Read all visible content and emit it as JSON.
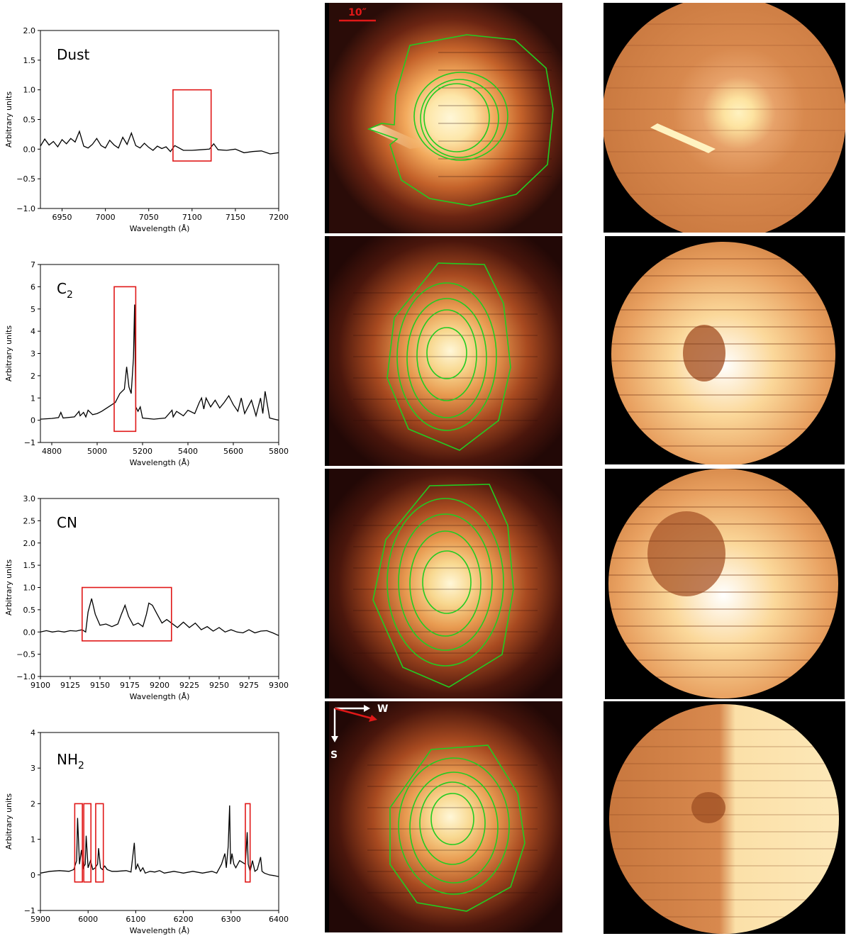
{
  "chart_data": [
    {
      "type": "line",
      "species": "Dust",
      "xlabel": "Wavelength (Å)",
      "ylabel": "Arbitrary units",
      "xlim": [
        6925,
        7200
      ],
      "ylim": [
        -1.0,
        2.0
      ],
      "xticks": [
        "6950",
        "7000",
        "7050",
        "7100",
        "7150",
        "7200"
      ],
      "yticks": [
        "−1.0",
        "−0.5",
        "0.0",
        "0.5",
        "1.0",
        "1.5",
        "2.0"
      ],
      "series": [
        {
          "name": "spectrum",
          "x": [
            6925,
            6930,
            6935,
            6940,
            6945,
            6950,
            6955,
            6960,
            6965,
            6970,
            6975,
            6980,
            6985,
            6990,
            6995,
            7000,
            7005,
            7010,
            7015,
            7020,
            7025,
            7030,
            7035,
            7040,
            7045,
            7050,
            7055,
            7060,
            7065,
            7070,
            7075,
            7080,
            7090,
            7100,
            7110,
            7120,
            7125,
            7130,
            7140,
            7150,
            7160,
            7170,
            7180,
            7190,
            7200
          ],
          "y": [
            0.05,
            0.17,
            0.07,
            0.13,
            0.04,
            0.16,
            0.09,
            0.18,
            0.12,
            0.3,
            0.05,
            0.02,
            0.08,
            0.18,
            0.06,
            0.02,
            0.15,
            0.07,
            0.02,
            0.2,
            0.08,
            0.27,
            0.06,
            0.02,
            0.1,
            0.03,
            -0.02,
            0.05,
            0.01,
            0.04,
            -0.04,
            0.06,
            -0.02,
            -0.02,
            -0.01,
            0.0,
            0.09,
            -0.01,
            -0.02,
            0.0,
            -0.06,
            -0.04,
            -0.03,
            -0.08,
            -0.06
          ]
        }
      ],
      "highlight_windows": [
        {
          "x": [
            7078,
            7122
          ],
          "y": [
            -0.2,
            1.0
          ]
        }
      ]
    },
    {
      "type": "line",
      "species": "C",
      "species_sub": "2",
      "xlabel": "Wavelength (Å)",
      "ylabel": "Arbitrary units",
      "xlim": [
        4750,
        5800
      ],
      "ylim": [
        -1,
        7
      ],
      "xticks": [
        "4800",
        "5000",
        "5200",
        "5400",
        "5600",
        "5800"
      ],
      "yticks": [
        "−1",
        "0",
        "1",
        "2",
        "3",
        "4",
        "5",
        "6",
        "7"
      ],
      "series": [
        {
          "name": "spectrum",
          "x": [
            4750,
            4800,
            4830,
            4840,
            4850,
            4900,
            4920,
            4925,
            4940,
            4950,
            4960,
            4980,
            5000,
            5020,
            5050,
            5080,
            5100,
            5120,
            5130,
            5140,
            5150,
            5160,
            5165,
            5170,
            5180,
            5190,
            5200,
            5250,
            5300,
            5330,
            5335,
            5350,
            5380,
            5400,
            5430,
            5450,
            5460,
            5470,
            5480,
            5500,
            5520,
            5540,
            5560,
            5580,
            5600,
            5620,
            5635,
            5650,
            5680,
            5700,
            5720,
            5730,
            5740,
            5760,
            5780,
            5800
          ],
          "y": [
            0.05,
            0.08,
            0.12,
            0.35,
            0.1,
            0.15,
            0.4,
            0.2,
            0.35,
            0.15,
            0.45,
            0.25,
            0.3,
            0.4,
            0.6,
            0.8,
            1.2,
            1.4,
            2.4,
            1.5,
            1.2,
            2.8,
            5.2,
            0.6,
            0.4,
            0.6,
            0.1,
            0.05,
            0.1,
            0.45,
            0.15,
            0.4,
            0.2,
            0.45,
            0.3,
            0.8,
            1.0,
            0.5,
            1.0,
            0.6,
            0.9,
            0.55,
            0.8,
            1.1,
            0.7,
            0.4,
            1.0,
            0.3,
            0.9,
            0.2,
            1.0,
            0.3,
            1.3,
            0.1,
            0.05,
            0.0
          ]
        }
      ],
      "highlight_windows": [
        {
          "x": [
            5075,
            5170
          ],
          "y": [
            -0.5,
            6.0
          ]
        }
      ]
    },
    {
      "type": "line",
      "species": "CN",
      "xlabel": "Wavelength (Å)",
      "ylabel": "Arbitrary units",
      "xlim": [
        9100,
        9300
      ],
      "ylim": [
        -1.0,
        3.0
      ],
      "xticks": [
        "9100",
        "9125",
        "9150",
        "9175",
        "9200",
        "9225",
        "9250",
        "9275",
        "9300"
      ],
      "yticks": [
        "−1.0",
        "−0.5",
        "0.0",
        "0.5",
        "1.0",
        "1.5",
        "2.0",
        "2.5",
        "3.0"
      ],
      "series": [
        {
          "name": "spectrum",
          "x": [
            9100,
            9105,
            9110,
            9115,
            9120,
            9125,
            9130,
            9135,
            9138,
            9140,
            9143,
            9146,
            9150,
            9155,
            9160,
            9165,
            9168,
            9171,
            9174,
            9178,
            9182,
            9186,
            9189,
            9191,
            9194,
            9198,
            9202,
            9206,
            9210,
            9215,
            9220,
            9225,
            9230,
            9235,
            9240,
            9245,
            9250,
            9255,
            9260,
            9265,
            9270,
            9275,
            9280,
            9285,
            9290,
            9295,
            9300
          ],
          "y": [
            0.0,
            0.03,
            0.0,
            0.02,
            0.0,
            0.03,
            0.02,
            0.05,
            0.0,
            0.45,
            0.75,
            0.4,
            0.15,
            0.18,
            0.12,
            0.18,
            0.4,
            0.6,
            0.35,
            0.15,
            0.2,
            0.12,
            0.4,
            0.65,
            0.6,
            0.4,
            0.2,
            0.28,
            0.2,
            0.1,
            0.22,
            0.1,
            0.2,
            0.05,
            0.12,
            0.02,
            0.1,
            0.0,
            0.05,
            0.0,
            -0.02,
            0.05,
            -0.02,
            0.02,
            0.03,
            -0.02,
            -0.08
          ]
        }
      ],
      "highlight_windows": [
        {
          "x": [
            9135,
            9210
          ],
          "y": [
            -0.2,
            1.0
          ]
        }
      ]
    },
    {
      "type": "line",
      "species": "NH",
      "species_sub": "2",
      "xlabel": "Wavelength (Å)",
      "ylabel": "Arbitrary units",
      "xlim": [
        5900,
        6400
      ],
      "ylim": [
        -1,
        4
      ],
      "xticks": [
        "5900",
        "6000",
        "6100",
        "6200",
        "6300",
        "6400"
      ],
      "yticks": [
        "−1",
        "0",
        "1",
        "2",
        "3",
        "4"
      ],
      "series": [
        {
          "name": "spectrum",
          "x": [
            5900,
            5920,
            5940,
            5960,
            5970,
            5976,
            5978,
            5982,
            5986,
            5990,
            5994,
            5996,
            6000,
            6005,
            6010,
            6015,
            6020,
            6022,
            6026,
            6030,
            6035,
            6040,
            6050,
            6060,
            6080,
            6090,
            6097,
            6100,
            6104,
            6110,
            6115,
            6120,
            6130,
            6140,
            6150,
            6160,
            6180,
            6200,
            6220,
            6240,
            6260,
            6270,
            6280,
            6287,
            6290,
            6294,
            6297,
            6299,
            6302,
            6306,
            6310,
            6318,
            6330,
            6334,
            6336,
            6340,
            6345,
            6350,
            6355,
            6362,
            6365,
            6370,
            6380,
            6390,
            6400
          ],
          "y": [
            0.05,
            0.1,
            0.12,
            0.1,
            0.15,
            0.4,
            1.6,
            0.3,
            0.7,
            0.2,
            0.3,
            1.1,
            0.2,
            0.4,
            0.15,
            0.2,
            0.3,
            0.75,
            0.2,
            0.15,
            0.25,
            0.15,
            0.1,
            0.1,
            0.12,
            0.08,
            0.9,
            0.15,
            0.3,
            0.1,
            0.2,
            0.05,
            0.1,
            0.08,
            0.12,
            0.05,
            0.1,
            0.05,
            0.1,
            0.05,
            0.1,
            0.05,
            0.3,
            0.6,
            0.2,
            0.8,
            1.95,
            0.3,
            0.6,
            0.3,
            0.2,
            0.4,
            0.3,
            1.2,
            0.3,
            0.1,
            0.4,
            0.1,
            0.15,
            0.5,
            0.1,
            0.05,
            0.0,
            -0.02,
            -0.05
          ]
        }
      ],
      "highlight_windows": [
        {
          "x": [
            5972,
            5988
          ],
          "y": [
            -0.2,
            2.0
          ]
        },
        {
          "x": [
            5991,
            6006
          ],
          "y": [
            -0.2,
            2.0
          ]
        },
        {
          "x": [
            6016,
            6032
          ],
          "y": [
            -0.2,
            2.0
          ]
        },
        {
          "x": [
            6330,
            6340
          ],
          "y": [
            -0.2,
            2.0
          ]
        }
      ]
    }
  ],
  "images": {
    "scale_bar_label": "10″",
    "compass": {
      "west_label": "W",
      "south_label": "S"
    },
    "colors": {
      "contour": "#22cc22",
      "accent": "#e01818",
      "core": "#fff7d8",
      "background": "#000000"
    }
  }
}
